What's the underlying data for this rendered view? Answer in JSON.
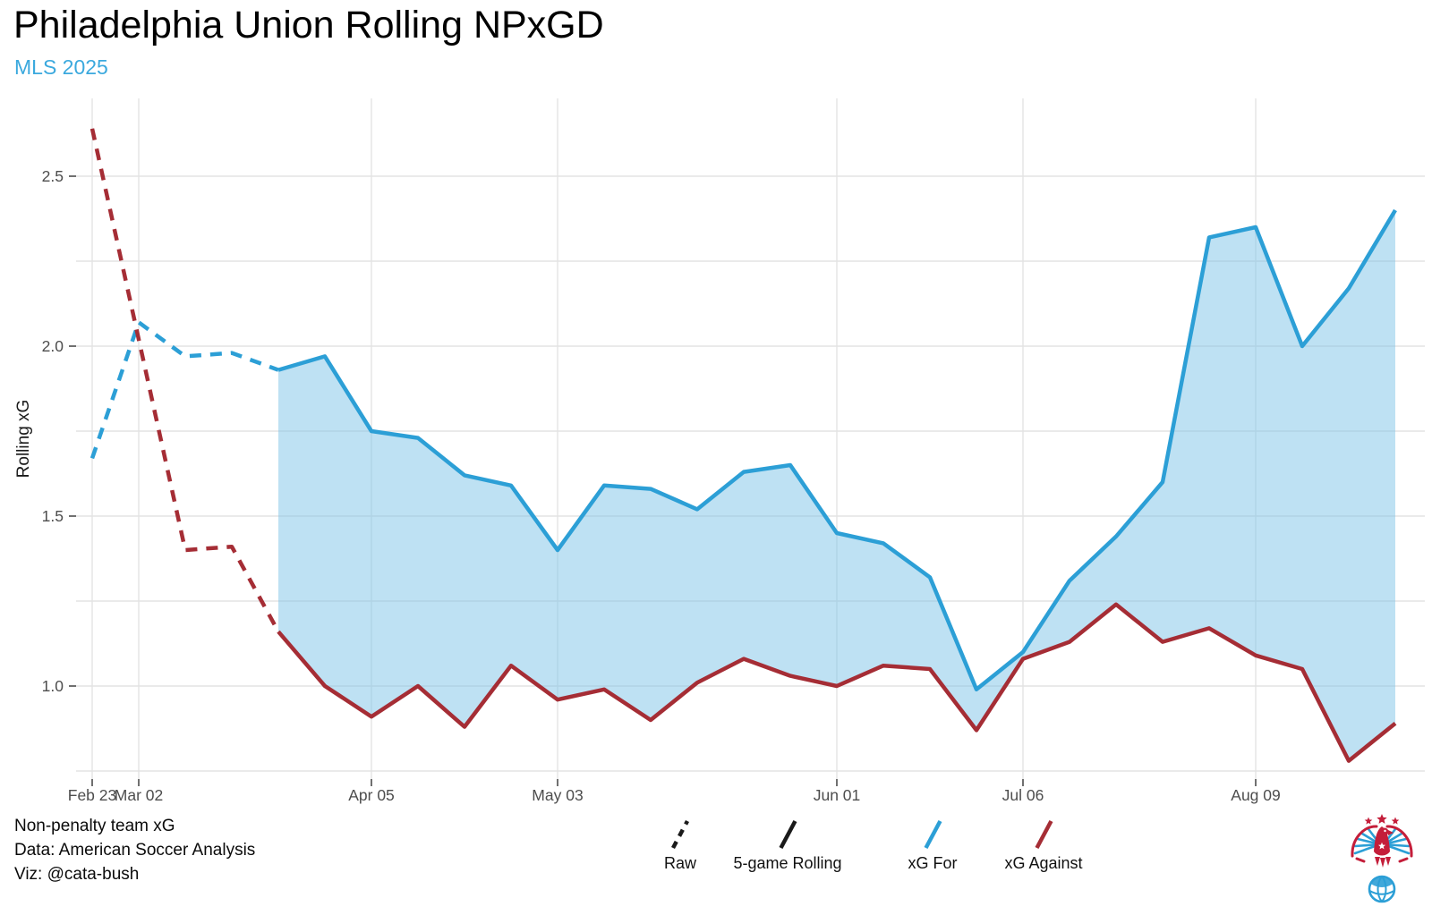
{
  "header": {
    "title": "Philadelphia Union Rolling NPxGD",
    "subtitle": "MLS 2025"
  },
  "footer": {
    "line1": "Non-penalty team xG",
    "line2": "Data: American Soccer Analysis",
    "line3": "Viz: @cata-bush"
  },
  "legend": {
    "items": [
      {
        "label": "Raw",
        "color": "#1a1a1a",
        "dash": "8,7"
      },
      {
        "label": "5-game Rolling",
        "color": "#1a1a1a",
        "dash": "none"
      },
      {
        "label": "xG For",
        "color": "#2C9FD6",
        "dash": "none"
      },
      {
        "label": "xG Against",
        "color": "#A52D35",
        "dash": "none"
      }
    ]
  },
  "chart_data": {
    "type": "line",
    "title": "Philadelphia Union Rolling NPxGD",
    "subtitle": "MLS 2025",
    "xlabel": "",
    "ylabel": "Rolling xG",
    "x_axis_unit": "match index (labeled by match date)",
    "ylim": [
      0.72,
      2.73
    ],
    "grid": "on",
    "legend_position": "bottom",
    "gridlines_y": [
      0.75,
      1.0,
      1.25,
      1.5,
      1.75,
      2.0,
      2.25,
      2.5
    ],
    "yticks": [
      {
        "value": 1.0,
        "label": "1.0"
      },
      {
        "value": 1.5,
        "label": "1.5"
      },
      {
        "value": 2.0,
        "label": "2.0"
      },
      {
        "value": 2.5,
        "label": "2.5"
      }
    ],
    "xticks": [
      {
        "game": 1,
        "label": "Feb 23"
      },
      {
        "game": 2,
        "label": "Mar 02"
      },
      {
        "game": 7,
        "label": "Apr 05"
      },
      {
        "game": 11,
        "label": "May 03"
      },
      {
        "game": 17,
        "label": "Jun 01"
      },
      {
        "game": 21,
        "label": "Jul 06"
      },
      {
        "game": 26,
        "label": "Aug 09"
      }
    ],
    "series": [
      {
        "name": "xG For (raw)",
        "color": "#2C9FD6",
        "dashed": true,
        "start_game": 1,
        "values": [
          1.67,
          2.07,
          1.97,
          1.98,
          1.93
        ]
      },
      {
        "name": "xG Against (raw)",
        "color": "#A52D35",
        "dashed": true,
        "start_game": 1,
        "values": [
          2.64,
          2.02,
          1.4,
          1.41,
          1.16
        ]
      },
      {
        "name": "xG For (5-game rolling)",
        "color": "#2C9FD6",
        "dashed": false,
        "start_game": 5,
        "values": [
          1.93,
          1.97,
          1.75,
          1.73,
          1.62,
          1.59,
          1.4,
          1.59,
          1.58,
          1.52,
          1.63,
          1.65,
          1.45,
          1.42,
          1.32,
          0.99,
          1.1,
          1.31,
          1.44,
          1.6,
          2.32,
          2.35,
          2.0,
          2.17,
          2.4
        ]
      },
      {
        "name": "xG Against (5-game rolling)",
        "color": "#A52D35",
        "dashed": false,
        "start_game": 5,
        "values": [
          1.16,
          1.0,
          0.91,
          1.0,
          0.88,
          1.06,
          0.96,
          0.99,
          0.9,
          1.01,
          1.08,
          1.03,
          1.0,
          1.06,
          1.05,
          0.87,
          1.08,
          1.13,
          1.24,
          1.13,
          1.17,
          1.09,
          1.05,
          0.78,
          0.89
        ]
      }
    ],
    "fill_between": {
      "upper": "xG For (5-game rolling)",
      "lower": "xG Against (5-game rolling)",
      "color": "#7EC3E8",
      "opacity": 0.5
    },
    "colors": {
      "for_line": "#2C9FD6",
      "against_line": "#A52D35",
      "fill": "#7EC3E8",
      "gridline": "#E3E3E3",
      "tick_text": "#4D4D4D",
      "axis_title": "#1A1A1A",
      "tick_mark": "#333333"
    }
  },
  "logo": {
    "name": "cata-bush eagle crest",
    "red": "#C41E3A",
    "blue": "#2C9FD6"
  }
}
